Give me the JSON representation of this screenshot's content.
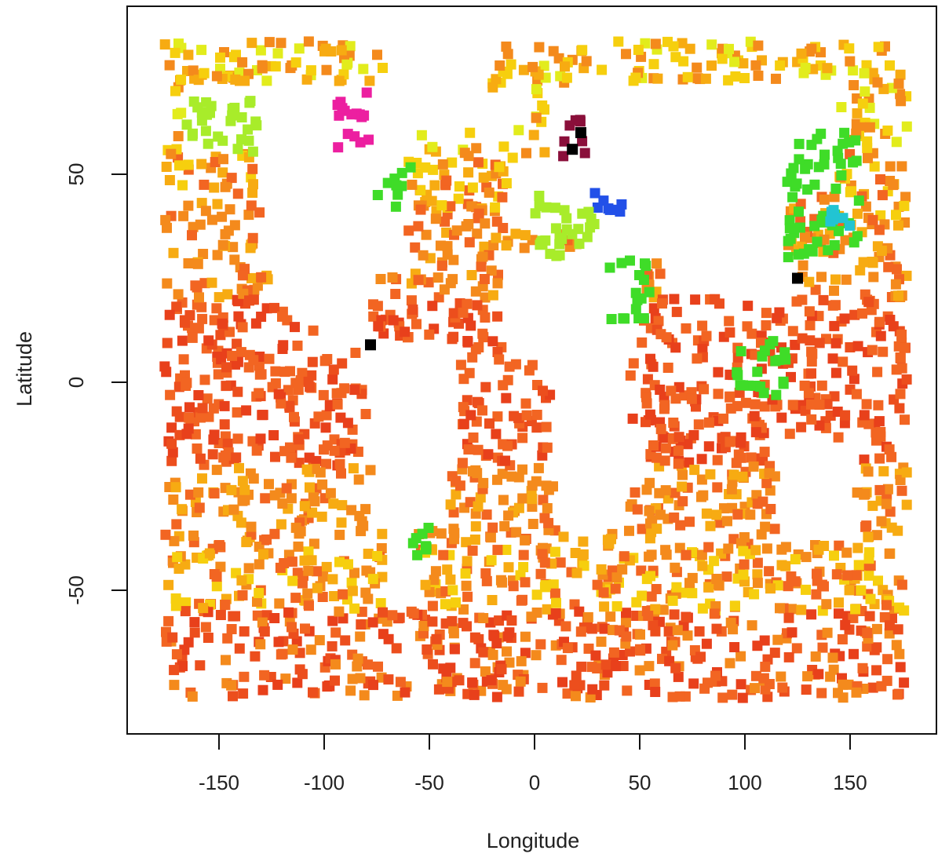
{
  "chart_data": {
    "type": "scatter",
    "title": "",
    "xlabel": "Longitude",
    "ylabel": "Latitude",
    "xlim": [
      -180,
      180
    ],
    "ylim": [
      -80,
      85
    ],
    "x_ticks": [
      -150,
      -100,
      -50,
      0,
      50,
      100,
      150
    ],
    "x_tick_labels": [
      "-150",
      "-100",
      "-50",
      "0",
      "50",
      "100",
      "150"
    ],
    "y_ticks": [
      -50,
      0,
      50
    ],
    "y_tick_labels": [
      "-50",
      "0",
      "50"
    ],
    "grid": false,
    "legend": "none",
    "marker": "filled-square",
    "colormap": [
      "#e8401b",
      "#f26522",
      "#f48a1c",
      "#f7ab12",
      "#f6cf0e",
      "#e2ec1c",
      "#a8ec2a",
      "#3fdc28",
      "#22c4d2",
      "#2250e8",
      "#ec1fa0",
      "#8a0f3a",
      "#000000"
    ],
    "highlight_clusters": [
      {
        "lon": [
          -95,
          -76
        ],
        "lat": [
          55,
          70
        ],
        "color": "#ec1fa0"
      },
      {
        "lon": [
          13,
          25
        ],
        "lat": [
          54,
          64
        ],
        "color": "#8a0f3a"
      },
      {
        "lon": [
          28,
          42
        ],
        "lat": [
          41,
          46
        ],
        "color": "#2250e8"
      },
      {
        "lon": [
          -75,
          -58
        ],
        "lat": [
          42,
          52
        ],
        "color": "#3fdc28"
      },
      {
        "lon": [
          0,
          35
        ],
        "lat": [
          30,
          45
        ],
        "color": "#a8ec2a"
      },
      {
        "lon": [
          35,
          55
        ],
        "lat": [
          15,
          30
        ],
        "color": "#3fdc28"
      },
      {
        "lon": [
          120,
          155
        ],
        "lat": [
          30,
          60
        ],
        "color": "#3fdc28"
      },
      {
        "lon": [
          140,
          150
        ],
        "lat": [
          37,
          42
        ],
        "color": "#22c4d2"
      },
      {
        "lon": [
          95,
          120
        ],
        "lat": [
          -5,
          10
        ],
        "color": "#3fdc28"
      },
      {
        "lon": [
          -170,
          -130
        ],
        "lat": [
          55,
          68
        ],
        "color": "#a8ec2a"
      },
      {
        "lon": [
          -60,
          -50
        ],
        "lat": [
          -42,
          -35
        ],
        "color": "#3fdc28"
      }
    ],
    "black_points": [
      {
        "lon": -78,
        "lat": 9
      },
      {
        "lon": 125,
        "lat": 25
      },
      {
        "lon": 18,
        "lat": 56
      },
      {
        "lon": 22,
        "lat": 60
      }
    ]
  }
}
